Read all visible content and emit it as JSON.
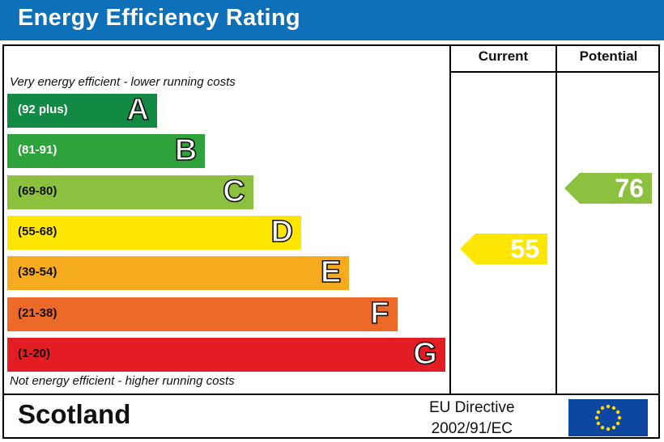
{
  "title": "Energy Efficiency Rating",
  "columns": {
    "current": "Current",
    "potential": "Potential"
  },
  "top_note": "Very energy efficient - lower running costs",
  "bottom_note": "Not energy efficient - higher running costs",
  "chart_data": {
    "type": "bar",
    "title": "Energy Efficiency Rating",
    "bands": [
      {
        "letter": "A",
        "range": "(92 plus)",
        "color": "#138a43",
        "text_color": "#ffffff"
      },
      {
        "letter": "B",
        "range": "(81-91)",
        "color": "#2ea33b",
        "text_color": "#ffffff"
      },
      {
        "letter": "C",
        "range": "(69-80)",
        "color": "#8cc13f",
        "text_color": "#111111"
      },
      {
        "letter": "D",
        "range": "(55-68)",
        "color": "#ffe600",
        "text_color": "#111111"
      },
      {
        "letter": "E",
        "range": "(39-54)",
        "color": "#f6ab1f",
        "text_color": "#111111"
      },
      {
        "letter": "F",
        "range": "(21-38)",
        "color": "#ec6928",
        "text_color": "#111111"
      },
      {
        "letter": "G",
        "range": "(1-20)",
        "color": "#e31d23",
        "text_color": "#111111"
      }
    ],
    "current": {
      "value": 55,
      "band": "D",
      "color": "#ffe600"
    },
    "potential": {
      "value": 76,
      "band": "C",
      "color": "#8cc13f"
    }
  },
  "footer": {
    "country": "Scotland",
    "directive_line1": "EU Directive",
    "directive_line2": "2002/91/EC",
    "flag_icon": "eu-flag-icon"
  }
}
